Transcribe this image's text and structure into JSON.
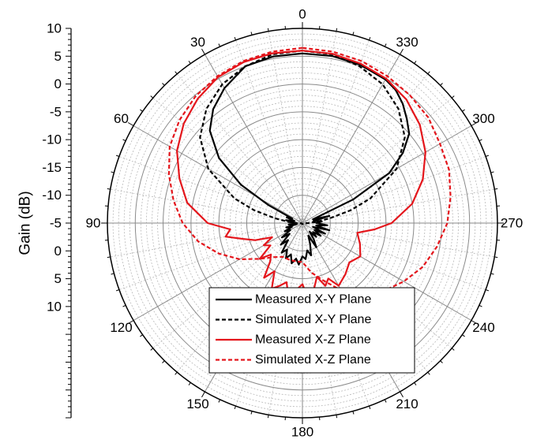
{
  "chart_data": {
    "type": "polar-line",
    "ylabel": "Gain (dB)",
    "radial_axis": {
      "min": -25,
      "max": 10,
      "major_step": 5,
      "tick_labels": [
        "10",
        "5",
        "0",
        "-5",
        "-10",
        "-15",
        "-10",
        "-5",
        "0",
        "5",
        "10"
      ]
    },
    "angle_axis": {
      "direction": "counterclockwise",
      "zero_at": "top",
      "step_deg": 30,
      "labels": [
        "0",
        "30",
        "60",
        "90",
        "120",
        "150",
        "180",
        "210",
        "240",
        "270",
        "300",
        "330"
      ]
    },
    "grid": true,
    "legend": {
      "placement": "bottom-center",
      "entries": [
        "Measured X-Y Plane",
        "Simulated X-Y Plane",
        "Measured X-Z Plane",
        "Simulated X-Z Plane"
      ]
    },
    "series": [
      {
        "name": "Measured X-Y Plane",
        "color": "#000000",
        "dash": "solid",
        "points": [
          [
            0,
            5.5
          ],
          [
            10,
            5.4
          ],
          [
            20,
            5.0
          ],
          [
            30,
            3.0
          ],
          [
            38,
            1.0
          ],
          [
            45,
            -1.5
          ],
          [
            52,
            -6
          ],
          [
            58,
            -12
          ],
          [
            62,
            -18
          ],
          [
            66,
            -23
          ],
          [
            70,
            -22
          ],
          [
            75,
            -23.5
          ],
          [
            80,
            -22
          ],
          [
            85,
            -23
          ],
          [
            92,
            -24
          ],
          [
            96,
            -22.5
          ],
          [
            100,
            -24
          ],
          [
            105,
            -22
          ],
          [
            110,
            -23
          ],
          [
            115,
            -21.5
          ],
          [
            120,
            -22.5
          ],
          [
            125,
            -20.5
          ],
          [
            130,
            -22
          ],
          [
            135,
            -19.5
          ],
          [
            140,
            -21
          ],
          [
            145,
            -18.5
          ],
          [
            150,
            -19.5
          ],
          [
            155,
            -18
          ],
          [
            160,
            -19
          ],
          [
            165,
            -17.5
          ],
          [
            170,
            -18.5
          ],
          [
            175,
            -17.5
          ],
          [
            180,
            -19
          ],
          [
            185,
            -18.5
          ],
          [
            190,
            -20
          ],
          [
            195,
            -19
          ],
          [
            200,
            -21
          ],
          [
            205,
            -22.5
          ],
          [
            210,
            -20
          ],
          [
            215,
            -21.5
          ],
          [
            220,
            -23
          ],
          [
            225,
            -21.5
          ],
          [
            230,
            -22.5
          ],
          [
            235,
            -21
          ],
          [
            240,
            -22.5
          ],
          [
            245,
            -20.5
          ],
          [
            250,
            -23
          ],
          [
            255,
            -20
          ],
          [
            260,
            -22.5
          ],
          [
            265,
            -20.5
          ],
          [
            270,
            -22.5
          ],
          [
            275,
            -21.5
          ],
          [
            280,
            -23
          ],
          [
            285,
            -20
          ],
          [
            290,
            -23
          ],
          [
            295,
            -15
          ],
          [
            300,
            -7
          ],
          [
            305,
            -3
          ],
          [
            310,
            0
          ],
          [
            315,
            1.5
          ],
          [
            320,
            3.0
          ],
          [
            325,
            4.2
          ],
          [
            330,
            4.8
          ],
          [
            340,
            5.3
          ],
          [
            350,
            5.5
          ],
          [
            360,
            5.5
          ]
        ]
      },
      {
        "name": "Simulated X-Y Plane",
        "color": "#000000",
        "dash": "dashed",
        "points": [
          [
            0,
            6.0
          ],
          [
            10,
            5.8
          ],
          [
            20,
            5.0
          ],
          [
            30,
            3.8
          ],
          [
            40,
            1.8
          ],
          [
            50,
            -1.0
          ],
          [
            60,
            -5.5
          ],
          [
            70,
            -12
          ],
          [
            75,
            -16
          ],
          [
            80,
            -20
          ],
          [
            85,
            -22.5
          ],
          [
            90,
            -24
          ],
          [
            95,
            -24.5
          ],
          [
            100,
            -24.8
          ],
          [
            180,
            -24.8
          ],
          [
            260,
            -24.8
          ],
          [
            265,
            -24.5
          ],
          [
            270,
            -24
          ],
          [
            275,
            -22.5
          ],
          [
            280,
            -20
          ],
          [
            285,
            -16
          ],
          [
            290,
            -12
          ],
          [
            300,
            -5.5
          ],
          [
            310,
            -1.0
          ],
          [
            320,
            1.8
          ],
          [
            330,
            3.8
          ],
          [
            340,
            5.0
          ],
          [
            350,
            5.8
          ],
          [
            360,
            6.0
          ]
        ]
      },
      {
        "name": "Measured X-Z Plane",
        "color": "#e4161c",
        "dash": "solid",
        "points": [
          [
            0,
            6.0
          ],
          [
            10,
            6.0
          ],
          [
            20,
            5.8
          ],
          [
            30,
            5.3
          ],
          [
            40,
            4.2
          ],
          [
            50,
            2.8
          ],
          [
            60,
            1.0
          ],
          [
            70,
            -1.5
          ],
          [
            80,
            -4
          ],
          [
            90,
            -8
          ],
          [
            95,
            -12
          ],
          [
            100,
            -11
          ],
          [
            105,
            -14
          ],
          [
            110,
            -16
          ],
          [
            115,
            -19
          ],
          [
            120,
            -17
          ],
          [
            125,
            -18
          ],
          [
            130,
            -15
          ],
          [
            135,
            -17
          ],
          [
            140,
            -16
          ],
          [
            145,
            -13
          ],
          [
            150,
            -15
          ],
          [
            155,
            -12
          ],
          [
            160,
            -13
          ],
          [
            165,
            -14
          ],
          [
            170,
            -11
          ],
          [
            175,
            -13
          ],
          [
            180,
            -14
          ],
          [
            185,
            -11
          ],
          [
            190,
            -13
          ],
          [
            195,
            -15
          ],
          [
            200,
            -13
          ],
          [
            205,
            -14
          ],
          [
            210,
            -12
          ],
          [
            220,
            -13
          ],
          [
            230,
            -14
          ],
          [
            240,
            -13
          ],
          [
            250,
            -14
          ],
          [
            260,
            -15
          ],
          [
            265,
            -12
          ],
          [
            270,
            -9
          ],
          [
            280,
            -5
          ],
          [
            290,
            -2
          ],
          [
            300,
            0.5
          ],
          [
            310,
            2.5
          ],
          [
            320,
            4.0
          ],
          [
            330,
            5.0
          ],
          [
            340,
            5.5
          ],
          [
            350,
            5.9
          ],
          [
            360,
            6.0
          ]
        ]
      },
      {
        "name": "Simulated X-Z Plane",
        "color": "#e4161c",
        "dash": "dashed",
        "points": [
          [
            0,
            6.5
          ],
          [
            10,
            6.3
          ],
          [
            20,
            6.0
          ],
          [
            30,
            5.5
          ],
          [
            40,
            4.8
          ],
          [
            50,
            3.8
          ],
          [
            60,
            2.5
          ],
          [
            70,
            0.5
          ],
          [
            80,
            -1.5
          ],
          [
            90,
            -3.5
          ],
          [
            100,
            -6
          ],
          [
            110,
            -9
          ],
          [
            120,
            -12
          ],
          [
            130,
            -15
          ],
          [
            140,
            -17
          ],
          [
            150,
            -18
          ],
          [
            160,
            -18
          ],
          [
            170,
            -18
          ],
          [
            180,
            -18
          ],
          [
            190,
            -16
          ],
          [
            200,
            -14
          ],
          [
            210,
            -11
          ],
          [
            220,
            -8
          ],
          [
            230,
            -6
          ],
          [
            240,
            -4
          ],
          [
            250,
            -2
          ],
          [
            260,
            -0.5
          ],
          [
            270,
            1.0
          ],
          [
            280,
            2.0
          ],
          [
            290,
            3.0
          ],
          [
            300,
            3.5
          ],
          [
            310,
            4.5
          ],
          [
            320,
            5.0
          ],
          [
            330,
            5.5
          ],
          [
            340,
            6.0
          ],
          [
            350,
            6.3
          ],
          [
            360,
            6.5
          ]
        ]
      }
    ]
  }
}
